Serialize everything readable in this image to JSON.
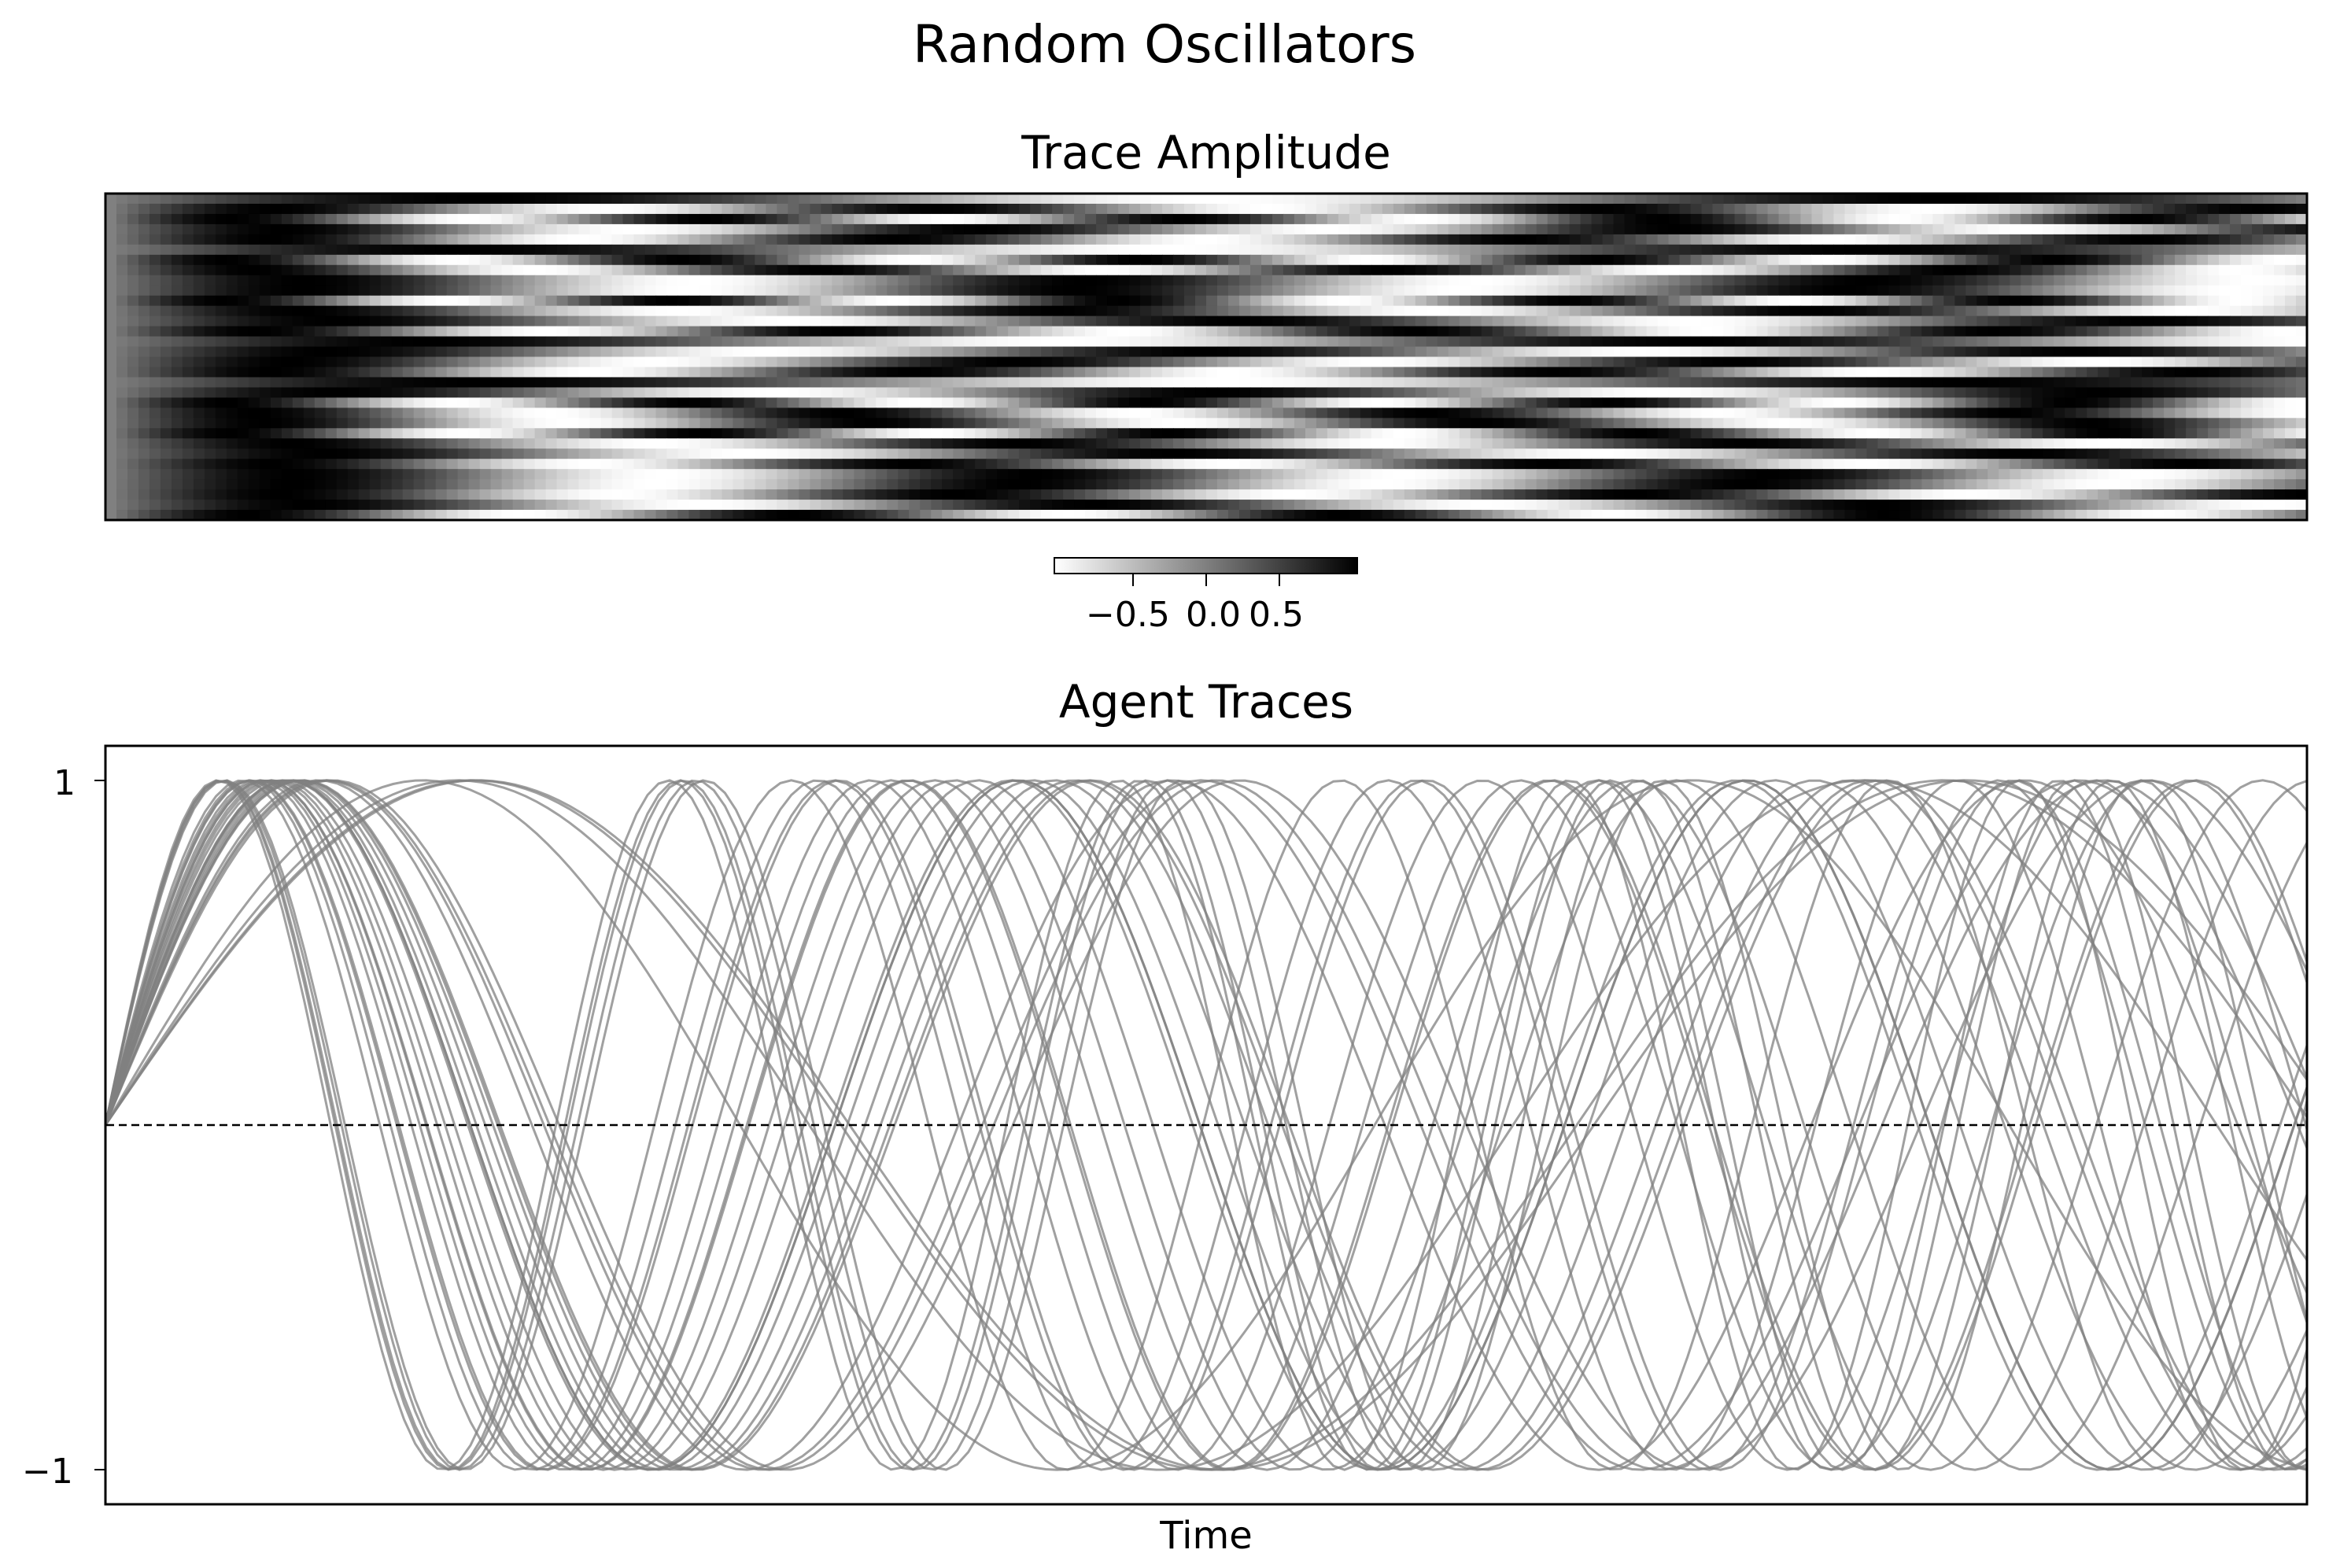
{
  "figure": {
    "title": "Random Oscillators",
    "line_color": "#808080",
    "reference_line_color": "#000000"
  },
  "chart_data": [
    {
      "type": "heatmap",
      "title": "Trace Amplitude",
      "colormap": "gray_r",
      "rows": 32,
      "columns": 200,
      "value_range": [
        -1,
        1
      ],
      "colorbar": {
        "orientation": "horizontal",
        "placement": "bottom-center",
        "ticks": [
          -0.5,
          0.0,
          0.5
        ],
        "tick_labels": [
          "−0.5",
          "0.0",
          "0.5"
        ]
      },
      "xlabel": "",
      "ylabel": "",
      "show_axis_ticks": false
    },
    {
      "type": "line",
      "title": "Agent Traces",
      "xlabel": "Time",
      "ylabel": "",
      "series_count": 32,
      "ylim": [
        -1.1,
        1.1
      ],
      "yticks": [
        1,
        -1
      ],
      "ytick_labels": [
        "1",
        "−1"
      ],
      "reference_line": {
        "y": 0,
        "style": "dashed"
      },
      "grid": false,
      "note": "Each trace starts at 0 and oscillates between -1 and 1; the same 32 traces are shown as rows in the heatmap."
    }
  ]
}
